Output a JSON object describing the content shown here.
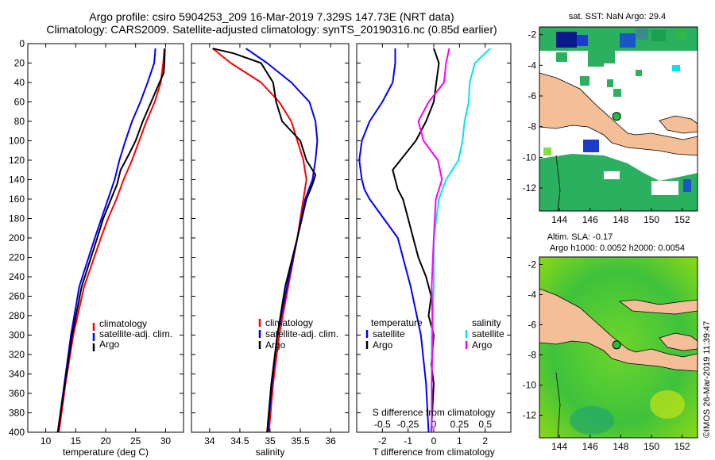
{
  "header": {
    "line1": "Argo profile: csiro 5904253_209 16-Mar-2019 7.329S 147.73E (NRT data)",
    "line2": "Climatology: CARS2009. Satellite-adjusted climatology: synTS_20190316.nc (0.85d earlier)"
  },
  "watermark": "©IMOS 26-Mar-2019 11:39:47",
  "colors": {
    "climatology": "#ff0000",
    "satellite": "#0000ff",
    "argo": "#000000",
    "salinity_satellite": "#00e5ee",
    "salinity_argo": "#ff00ff",
    "land": "#f4be96",
    "marker": "#1fbf3f"
  },
  "chart_data": [
    {
      "type": "line",
      "name": "temperature-profile",
      "xlabel": "temperature (deg C)",
      "ylabel": "",
      "xlim": [
        7,
        33
      ],
      "ylim": [
        400,
        0
      ],
      "x_ticks": [
        10,
        15,
        20,
        25,
        30
      ],
      "y_ticks": [
        0,
        20,
        40,
        60,
        80,
        100,
        120,
        140,
        160,
        180,
        200,
        220,
        240,
        260,
        280,
        300,
        320,
        340,
        360,
        380,
        400
      ],
      "legend": [
        "climatology",
        "satellite-adj. clim.",
        "Argo"
      ],
      "legend_position": "lower-right",
      "series": [
        {
          "name": "climatology",
          "depth": [
            5,
            20,
            40,
            60,
            80,
            100,
            120,
            140,
            160,
            180,
            200,
            250,
            300,
            350,
            400
          ],
          "values": [
            29.8,
            29.6,
            29.2,
            28.2,
            26.8,
            25.6,
            24.4,
            23.0,
            21.8,
            20.4,
            19.2,
            16.4,
            14.6,
            13.3,
            12.2
          ]
        },
        {
          "name": "satellite-adj. clim.",
          "depth": [
            5,
            20,
            40,
            60,
            80,
            100,
            120,
            140,
            160,
            180,
            200,
            250,
            300,
            350,
            400
          ],
          "values": [
            28.3,
            28.1,
            27.0,
            25.8,
            24.4,
            23.3,
            22.3,
            21.5,
            20.4,
            19.3,
            18.2,
            15.6,
            14.2,
            13.1,
            12.0
          ]
        },
        {
          "name": "Argo",
          "depth": [
            5,
            20,
            30,
            40,
            60,
            80,
            100,
            115,
            130,
            145,
            160,
            180,
            200,
            250,
            300,
            350,
            400
          ],
          "values": [
            29.9,
            29.8,
            29.7,
            29.0,
            27.6,
            26.2,
            25.0,
            23.8,
            22.5,
            21.9,
            20.9,
            19.6,
            18.6,
            16.0,
            14.4,
            13.2,
            12.0
          ]
        }
      ]
    },
    {
      "type": "line",
      "name": "salinity-profile",
      "xlabel": "salinity",
      "ylabel": "",
      "xlim": [
        33.7,
        36.3
      ],
      "ylim": [
        400,
        0
      ],
      "x_ticks": [
        34,
        34.5,
        35,
        35.5,
        36
      ],
      "legend": [
        "climatology",
        "satellite-adj. clim.",
        "Argo"
      ],
      "legend_position": "lower-right",
      "series": [
        {
          "name": "climatology",
          "depth": [
            5,
            20,
            40,
            60,
            80,
            100,
            120,
            140,
            160,
            200,
            250,
            300,
            350,
            400
          ],
          "values": [
            34.05,
            34.35,
            34.85,
            35.15,
            35.35,
            35.45,
            35.55,
            35.6,
            35.55,
            35.45,
            35.3,
            35.15,
            35.05,
            34.98
          ]
        },
        {
          "name": "satellite-adj. clim.",
          "depth": [
            5,
            20,
            40,
            60,
            80,
            100,
            120,
            140,
            160,
            200,
            250,
            300,
            350,
            400
          ],
          "values": [
            34.6,
            34.95,
            35.35,
            35.65,
            35.75,
            35.78,
            35.75,
            35.7,
            35.58,
            35.45,
            35.28,
            35.12,
            35.03,
            34.96
          ]
        },
        {
          "name": "Argo",
          "depth": [
            5,
            10,
            20,
            30,
            40,
            60,
            80,
            100,
            120,
            135,
            145,
            160,
            200,
            250,
            300,
            350,
            400
          ],
          "values": [
            34.05,
            34.4,
            34.85,
            34.95,
            35.05,
            35.1,
            35.2,
            35.5,
            35.6,
            35.75,
            35.7,
            35.6,
            35.45,
            35.25,
            35.12,
            35.02,
            34.95
          ]
        }
      ]
    },
    {
      "type": "line",
      "name": "difference-profile",
      "xlabel": "T difference from climatology",
      "x2label": "S difference from climatology",
      "xlim": [
        -3,
        3
      ],
      "ylim": [
        400,
        0
      ],
      "x_ticks": [
        -2,
        -1,
        0,
        1,
        2
      ],
      "x2_ticks": [
        -0.5,
        -0.25,
        0,
        0.25,
        0.5
      ],
      "legend_temperature_heading": "temperature",
      "legend_salinity_heading": "salinity",
      "legend": [
        "satellite",
        "Argo",
        "satellite",
        "Argo"
      ],
      "legend_position": "lower",
      "series": [
        {
          "name": "temperature satellite",
          "depth": [
            5,
            20,
            40,
            60,
            80,
            100,
            120,
            140,
            150,
            160,
            200,
            250,
            300,
            350,
            400
          ],
          "values": [
            -1.5,
            -1.5,
            -1.6,
            -2.0,
            -2.5,
            -2.8,
            -2.9,
            -2.8,
            -2.7,
            -2.5,
            -1.4,
            -0.9,
            -0.5,
            -0.3,
            -0.2
          ]
        },
        {
          "name": "temperature Argo",
          "depth": [
            5,
            20,
            40,
            60,
            80,
            100,
            120,
            130,
            140,
            150,
            160,
            180,
            200,
            220,
            240,
            260,
            280,
            300,
            330,
            350,
            400
          ],
          "values": [
            0.0,
            0.2,
            0.1,
            0.0,
            -0.3,
            -0.7,
            -1.3,
            -1.6,
            -1.5,
            -1.4,
            -1.2,
            -1.0,
            -0.8,
            -0.6,
            -0.3,
            -0.1,
            -0.2,
            0.0,
            -0.1,
            0.0,
            -0.1
          ]
        },
        {
          "name": "salinity satellite",
          "depth": [
            5,
            20,
            40,
            60,
            80,
            100,
            120,
            140,
            160,
            200,
            250,
            300,
            350,
            400
          ],
          "values": [
            0.55,
            0.4,
            0.35,
            0.34,
            0.3,
            0.28,
            0.24,
            0.12,
            0.05,
            0.0,
            0.0,
            -0.02,
            -0.02,
            -0.02
          ]
        },
        {
          "name": "salinity Argo",
          "depth": [
            5,
            20,
            40,
            60,
            80,
            100,
            120,
            140,
            160,
            200,
            250,
            300,
            350,
            400
          ],
          "values": [
            0.15,
            0.12,
            0.1,
            -0.05,
            -0.15,
            -0.1,
            0.04,
            0.08,
            0.02,
            0.0,
            -0.02,
            -0.01,
            -0.02,
            -0.02
          ]
        }
      ]
    },
    {
      "type": "heatmap",
      "name": "sst-map",
      "title": "sat. SST: NaN Argo: 29.4",
      "x_ticks": [
        144,
        146,
        148,
        150,
        152
      ],
      "y_ticks": [
        -2,
        -4,
        -6,
        -8,
        -10,
        -12
      ],
      "xlim": [
        142.7,
        153.0
      ],
      "ylim": [
        -13.5,
        -1.5
      ],
      "argo_position": [
        147.73,
        -7.329
      ]
    },
    {
      "type": "heatmap",
      "name": "sla-map",
      "title": "Altim. SLA: -0.17",
      "subtitle": "Argo h1000: 0.0052 h2000: 0.0054",
      "x_ticks": [
        144,
        146,
        148,
        150,
        152
      ],
      "y_ticks": [
        -2,
        -4,
        -6,
        -8,
        -10,
        -12
      ],
      "xlim": [
        142.7,
        153.0
      ],
      "ylim": [
        -13.5,
        -1.5
      ],
      "argo_position": [
        147.73,
        -7.329
      ]
    }
  ]
}
